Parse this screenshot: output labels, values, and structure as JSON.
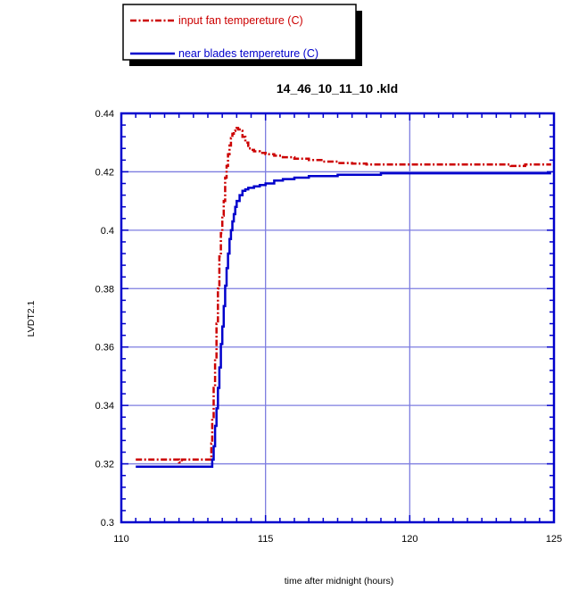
{
  "chart_data": {
    "type": "line",
    "title": "14_46_10_11_10 .kld",
    "xlabel": "time after midnight  (hours)",
    "ylabel": "LVDT2.1",
    "xlim": [
      110,
      125
    ],
    "ylim": [
      0.3,
      0.44
    ],
    "x_ticks": [
      110,
      115,
      120,
      125
    ],
    "y_ticks": [
      0.3,
      0.32,
      0.34,
      0.36,
      0.38,
      0.4,
      0.42,
      0.44
    ],
    "x_tick_labels": [
      "110",
      "115",
      "120",
      "125"
    ],
    "y_tick_labels": [
      "0.3",
      "0.32",
      "0.34",
      "0.36",
      "0.38",
      "0.4",
      "0.42",
      "0.44"
    ],
    "grid": true,
    "legend_position": "top-left, above plot",
    "series": [
      {
        "name": "input fan tempereture (C)",
        "color": "#cc0000",
        "dash": "dash-dot",
        "x": [
          110.5,
          111.9,
          112.0,
          112.1,
          113.1,
          113.12,
          113.15,
          113.2,
          113.25,
          113.3,
          113.35,
          113.4,
          113.45,
          113.5,
          113.55,
          113.6,
          113.65,
          113.7,
          113.75,
          113.8,
          113.85,
          113.9,
          113.95,
          114.0,
          114.05,
          114.1,
          114.2,
          114.3,
          114.4,
          114.5,
          114.6,
          114.8,
          115.0,
          115.3,
          115.6,
          116.0,
          116.5,
          117.0,
          117.5,
          118.0,
          118.5,
          119.0,
          120.0,
          121.0,
          122.0,
          123.0,
          123.5,
          124.0,
          124.9
        ],
        "y": [
          0.3215,
          0.3215,
          0.3205,
          0.3215,
          0.3215,
          0.327,
          0.336,
          0.346,
          0.356,
          0.368,
          0.38,
          0.391,
          0.399,
          0.405,
          0.41,
          0.418,
          0.422,
          0.426,
          0.429,
          0.4315,
          0.433,
          0.434,
          0.4345,
          0.435,
          0.4345,
          0.434,
          0.432,
          0.43,
          0.428,
          0.4275,
          0.427,
          0.4265,
          0.426,
          0.4255,
          0.425,
          0.4245,
          0.424,
          0.4235,
          0.423,
          0.4228,
          0.4225,
          0.4225,
          0.4225,
          0.4225,
          0.4225,
          0.4225,
          0.422,
          0.4225,
          0.4225
        ]
      },
      {
        "name": "near blades tempereture (C)",
        "color": "#0000cc",
        "dash": "solid",
        "x": [
          110.5,
          113.1,
          113.15,
          113.2,
          113.25,
          113.3,
          113.35,
          113.4,
          113.45,
          113.5,
          113.55,
          113.6,
          113.65,
          113.7,
          113.75,
          113.8,
          113.85,
          113.9,
          113.95,
          114.0,
          114.1,
          114.2,
          114.3,
          114.4,
          114.6,
          114.8,
          115.0,
          115.3,
          115.6,
          116.0,
          116.5,
          117.0,
          117.5,
          118.0,
          119.0,
          120.0,
          121.0,
          122.0,
          123.0,
          124.0,
          124.9
        ],
        "y": [
          0.319,
          0.319,
          0.3215,
          0.326,
          0.333,
          0.339,
          0.346,
          0.353,
          0.361,
          0.367,
          0.374,
          0.381,
          0.387,
          0.392,
          0.397,
          0.4,
          0.403,
          0.4055,
          0.408,
          0.41,
          0.412,
          0.4135,
          0.414,
          0.4145,
          0.415,
          0.4155,
          0.416,
          0.417,
          0.4175,
          0.418,
          0.4185,
          0.4185,
          0.419,
          0.419,
          0.4195,
          0.4195,
          0.4195,
          0.4195,
          0.4195,
          0.4195,
          0.4195
        ]
      }
    ]
  }
}
